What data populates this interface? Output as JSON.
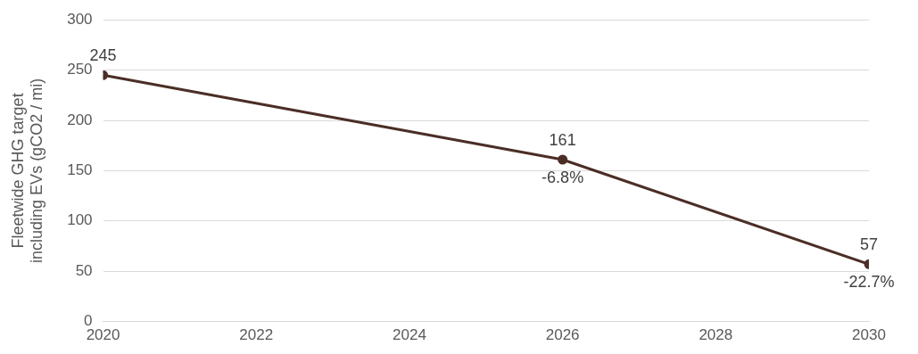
{
  "chart_data": {
    "type": "line",
    "ylabel": [
      "Fleetwide GHG target",
      "including EVs (gCO2 / mi)"
    ],
    "x": [
      2020,
      2026,
      2030
    ],
    "values": [
      245,
      161,
      57
    ],
    "color": "#4b2e26",
    "marker": "circle",
    "data_labels": true,
    "annotations": [
      {
        "x": 2026,
        "y": 161,
        "text": "-6.8%"
      },
      {
        "x": 2030,
        "y": 57,
        "text": "-22.7%"
      }
    ],
    "xlim": [
      2020,
      2030
    ],
    "xticks": [
      2020,
      2022,
      2024,
      2026,
      2028,
      2030
    ],
    "ylim": [
      0,
      300
    ],
    "yticks": [
      0,
      50,
      100,
      150,
      200,
      250,
      300
    ],
    "grid": "y"
  }
}
